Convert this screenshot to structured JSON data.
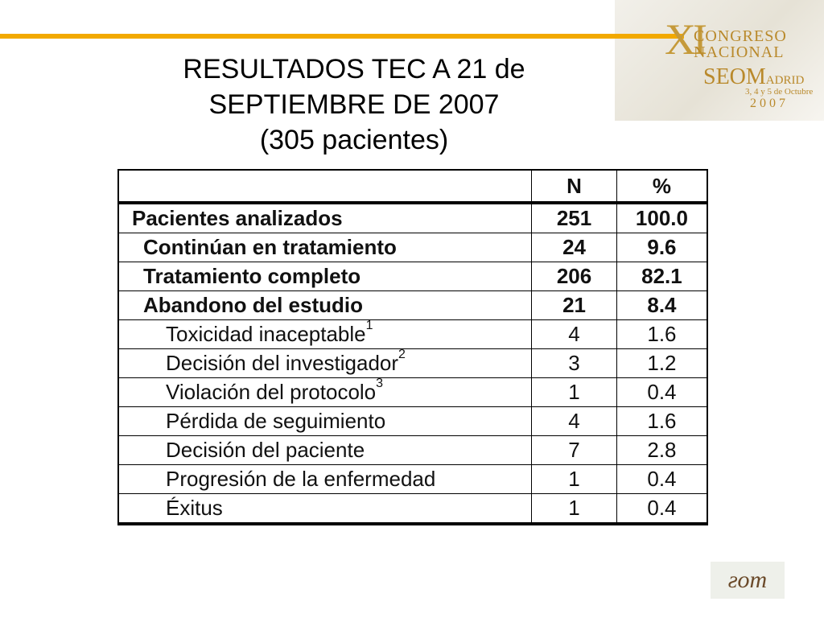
{
  "header": {
    "logo": {
      "numeral": "XI",
      "line1": "CONGRESO",
      "line2": "NACIONAL",
      "seom": "SEOM",
      "city": "ADRID",
      "dates": "3, 4 y 5 de Octubre",
      "year": "2007"
    },
    "title_lines": [
      "RESULTADOS TEC A 21 de",
      "SEPTIEMBRE DE 2007",
      "(305 pacientes)"
    ],
    "accent_color": "#f2a900"
  },
  "table": {
    "columns": [
      "",
      "N",
      "%"
    ],
    "rows": [
      {
        "label": "Pacientes analizados",
        "sup": "",
        "n": "251",
        "pct": "100.0",
        "level": 0,
        "bold": true
      },
      {
        "label": "Continúan en tratamiento",
        "sup": "",
        "n": "24",
        "pct": "9.6",
        "level": 1,
        "bold": true
      },
      {
        "label": "Tratamiento completo",
        "sup": "",
        "n": "206",
        "pct": "82.1",
        "level": 1,
        "bold": true
      },
      {
        "label": "Abandono del estudio",
        "sup": "",
        "n": "21",
        "pct": "8.4",
        "level": 1,
        "bold": true
      },
      {
        "label": "Toxicidad inaceptable",
        "sup": "1",
        "n": "4",
        "pct": "1.6",
        "level": 2,
        "bold": false
      },
      {
        "label": "Decisión del investigador",
        "sup": "2",
        "n": "3",
        "pct": "1.2",
        "level": 2,
        "bold": false
      },
      {
        "label": "Violación del protocolo",
        "sup": "3",
        "n": "1",
        "pct": "0.4",
        "level": 2,
        "bold": false
      },
      {
        "label": "Pérdida de seguimiento",
        "sup": "",
        "n": "4",
        "pct": "1.6",
        "level": 2,
        "bold": false
      },
      {
        "label": "Decisión del paciente",
        "sup": "",
        "n": "7",
        "pct": "2.8",
        "level": 2,
        "bold": false
      },
      {
        "label": "Progresión de la enfermedad",
        "sup": "",
        "n": "1",
        "pct": "0.4",
        "level": 2,
        "bold": false
      },
      {
        "label": "Éxitus",
        "sup": "",
        "n": "1",
        "pct": "0.4",
        "level": 2,
        "bold": false
      }
    ]
  },
  "footer": {
    "logo_icon": "seom-logo-icon"
  }
}
